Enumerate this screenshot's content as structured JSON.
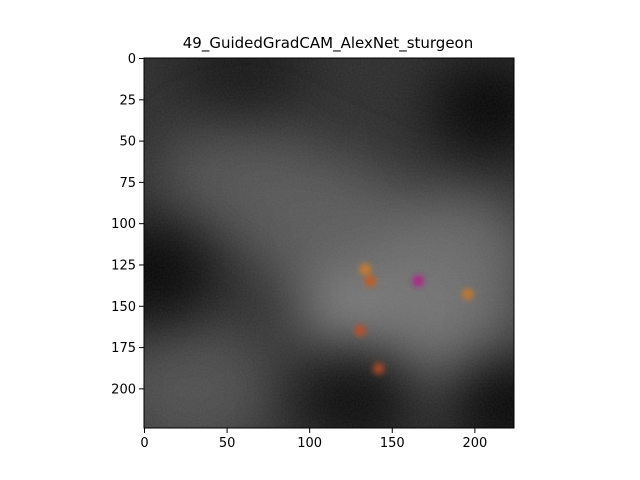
{
  "chart_data": {
    "type": "heatmap",
    "title": "49_GuidedGradCAM_AlexNet_sturgeon",
    "xlabel": "",
    "ylabel": "",
    "xlim": [
      0,
      224
    ],
    "ylim": [
      224,
      0
    ],
    "xticks": [
      0,
      50,
      100,
      150,
      200
    ],
    "yticks": [
      0,
      25,
      50,
      75,
      100,
      125,
      150,
      175,
      200
    ],
    "grid": false,
    "colormap": "grayscale with colored guided-gradient speckles",
    "background_color": "#ffffff",
    "bright_regions": [
      {
        "x": 145,
        "y": 150,
        "intensity": 0.62
      },
      {
        "x": 185,
        "y": 120,
        "intensity": 0.38
      },
      {
        "x": 180,
        "y": 170,
        "intensity": 0.4
      },
      {
        "x": 110,
        "y": 100,
        "intensity": 0.28
      },
      {
        "x": 60,
        "y": 75,
        "intensity": 0.22
      },
      {
        "x": 30,
        "y": 200,
        "intensity": 0.18
      }
    ],
    "dark_regions": [
      {
        "x": 5,
        "y": 130,
        "intensity": 0.9
      },
      {
        "x": 210,
        "y": 30,
        "intensity": 0.9
      },
      {
        "x": 130,
        "y": 205,
        "intensity": 0.8
      },
      {
        "x": 220,
        "y": 210,
        "intensity": 0.9
      },
      {
        "x": 60,
        "y": 10,
        "intensity": 0.5
      }
    ],
    "color_spots": [
      {
        "x": 134,
        "y": 128,
        "color": "#d07a2a"
      },
      {
        "x": 137,
        "y": 135,
        "color": "#c85a1e"
      },
      {
        "x": 166,
        "y": 135,
        "color": "#b0208a"
      },
      {
        "x": 196,
        "y": 143,
        "color": "#c8782e"
      },
      {
        "x": 131,
        "y": 165,
        "color": "#c0502a"
      },
      {
        "x": 142,
        "y": 188,
        "color": "#b04a2a"
      }
    ]
  }
}
